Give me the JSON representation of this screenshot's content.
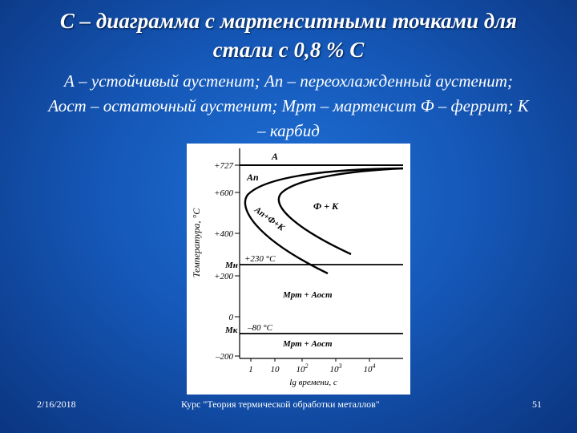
{
  "slide": {
    "title_line1": "C – диаграмма с мартенситными точками для",
    "title_line2": "стали с 0,8 % С",
    "subtitle_line1": "А – устойчивый аустенит; Ап – переохлажденный аустенит;",
    "subtitle_line2": "Аост – остаточный аустенит; Мрт – мартенсит Ф – феррит; К",
    "subtitle_line3": "– карбид"
  },
  "diagram": {
    "y_axis_label": "Температура, °С",
    "x_axis_label": "lg времени, с",
    "y_ticks": [
      "+727",
      "+600",
      "+400",
      "+200",
      "0",
      "–200"
    ],
    "x_ticks": [
      "1",
      "10",
      "10",
      "10",
      "10"
    ],
    "x_tick_exponents": [
      "",
      "",
      "2",
      "3",
      "4"
    ],
    "point_labels": {
      "ms": "Мн",
      "mk": "Мк",
      "ms_value": "+230 °C",
      "mk_value": "–80 °C"
    },
    "regions": {
      "stable_austenite": "А",
      "undercooled_austenite": "Ап",
      "transition_band": "Ап+Ф+К",
      "ferrite_carbide": "Ф + К",
      "martensite_upper": "Мрт + Аост",
      "martensite_lower": "Мрт + Аост"
    },
    "temperatures_c": {
      "a1": 727,
      "ms": 230,
      "mk": -80
    }
  },
  "footer": {
    "date": "2/16/2018",
    "course": "Курс \"Теория термической обработки металлов\"",
    "page": "51"
  }
}
